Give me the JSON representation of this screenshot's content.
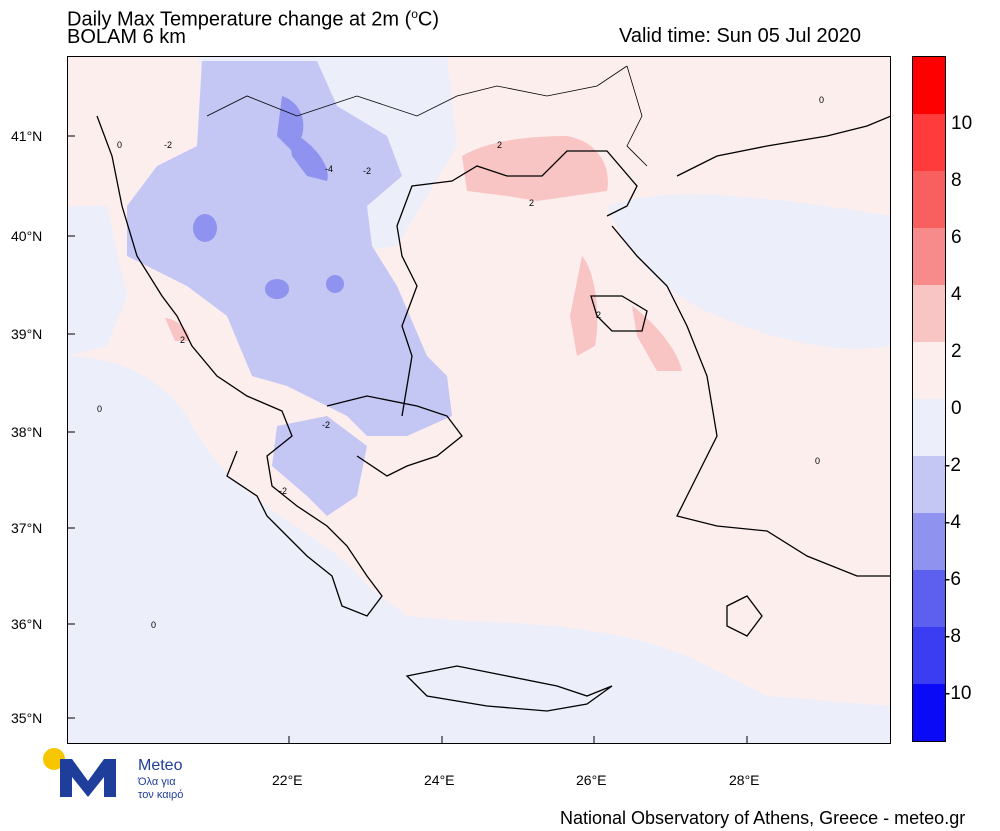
{
  "header": {
    "title": "Daily Max Temperature change at 2m (",
    "title_unit_sup": "o",
    "title_unit_tail": "C)",
    "subtitle": "BOLAM 6 km",
    "valid_time": "Valid time: Sun 05 Jul 2020"
  },
  "map": {
    "lat_labels": [
      "41°N",
      "40°N",
      "39°N",
      "38°N",
      "37°N",
      "36°N",
      "35°N"
    ],
    "lon_labels": [
      "22°E",
      "24°E",
      "26°E",
      "28°E"
    ],
    "contour_labels": [
      "-2",
      "-4",
      "-2",
      "-2",
      "-2",
      "2",
      "2",
      "2",
      "2",
      "0",
      "0",
      "0",
      "0",
      "0"
    ]
  },
  "colorbar": {
    "labels": [
      "10",
      "8",
      "6",
      "4",
      "2",
      "0",
      "-2",
      "-4",
      "-6",
      "-8",
      "-10"
    ],
    "colors": [
      "#ff0000",
      "#ff3b3b",
      "#f85f5f",
      "#f78a8a",
      "#f9c4c4",
      "#fdeeee",
      "#eceef9",
      "#c4c6f4",
      "#8f92ee",
      "#5d60ee",
      "#3a3df2",
      "#0a0af6"
    ]
  },
  "logo": {
    "name": "Meteo",
    "tagline_1": "Όλα για",
    "tagline_2": "τον καιρό"
  },
  "footer": {
    "credit": "National Observatory of Athens, Greece - meteo.gr"
  }
}
